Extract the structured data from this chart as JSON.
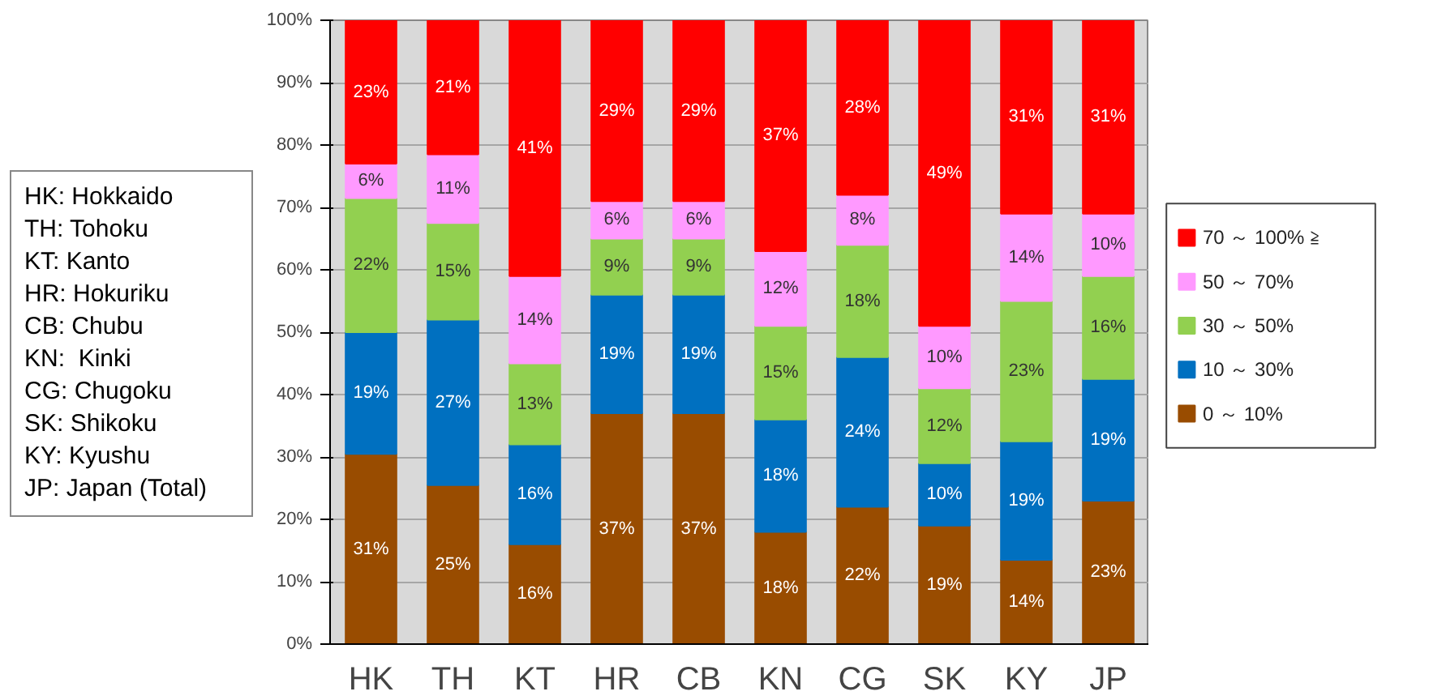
{
  "chart_data": {
    "type": "bar",
    "stacked": true,
    "categories": [
      "HK",
      "TH",
      "KT",
      "HR",
      "CB",
      "KN",
      "CG",
      "SK",
      "KY",
      "JP"
    ],
    "series": [
      {
        "name": "0 ～ 10%",
        "color": "#994c00",
        "values": [
          30.5,
          25.5,
          16,
          37,
          37,
          18,
          22,
          19,
          13.5,
          23
        ],
        "value_labels": [
          "31%",
          "25%",
          "16%",
          "37%",
          "37%",
          "18%",
          "22%",
          "19%",
          "14%",
          "23%"
        ]
      },
      {
        "name": "10 ～ 30%",
        "color": "#0070c0",
        "values": [
          19.5,
          26.5,
          16,
          19,
          19,
          18,
          24,
          10,
          19,
          19.5
        ],
        "value_labels": [
          "19%",
          "27%",
          "16%",
          "19%",
          "19%",
          "18%",
          "24%",
          "10%",
          "19%",
          "19%"
        ]
      },
      {
        "name": "30 ～ 50%",
        "color": "#92d050",
        "values": [
          21.5,
          15.5,
          13,
          9,
          9,
          15,
          18,
          12,
          22.5,
          16.5
        ],
        "value_labels": [
          "22%",
          "15%",
          "13%",
          "9%",
          "9%",
          "15%",
          "18%",
          "12%",
          "23%",
          "16%"
        ]
      },
      {
        "name": "50 ～ 70%",
        "color": "#ff99ff",
        "values": [
          5.5,
          11,
          14,
          6,
          6,
          12,
          8,
          10,
          14,
          10
        ],
        "value_labels": [
          "6%",
          "11%",
          "14%",
          "6%",
          "6%",
          "12%",
          "8%",
          "10%",
          "14%",
          "10%"
        ]
      },
      {
        "name": "70 ～ 100% ≧",
        "color": "#ff0000",
        "values": [
          23,
          21.5,
          41,
          29,
          29,
          37,
          28,
          49,
          31,
          31
        ],
        "value_labels": [
          "23%",
          "21%",
          "41%",
          "29%",
          "29%",
          "37%",
          "28%",
          "49%",
          "31%",
          "31%"
        ]
      }
    ],
    "ylim": [
      0,
      100
    ],
    "yticks": [
      {
        "value": 0,
        "label": "0%"
      },
      {
        "value": 10,
        "label": "10%"
      },
      {
        "value": 20,
        "label": "20%"
      },
      {
        "value": 30,
        "label": "30%"
      },
      {
        "value": 40,
        "label": "40%"
      },
      {
        "value": 50,
        "label": "50%"
      },
      {
        "value": 60,
        "label": "60%"
      },
      {
        "value": 70,
        "label": "70%"
      },
      {
        "value": 80,
        "label": "80%"
      },
      {
        "value": 90,
        "label": "90%"
      },
      {
        "value": 100,
        "label": "100%"
      }
    ],
    "grid": "y",
    "legend": "right",
    "annotations": [
      "HK: Hokkaido\nTH: Tohoku\nKT: Kanto\nHR: Hokuriku\nCB: Chubu\nKN:  Kinki\nCG: Chugoku\nSK: Shikoku\nKY: Kyushu\nJP: Japan (Total)"
    ]
  }
}
